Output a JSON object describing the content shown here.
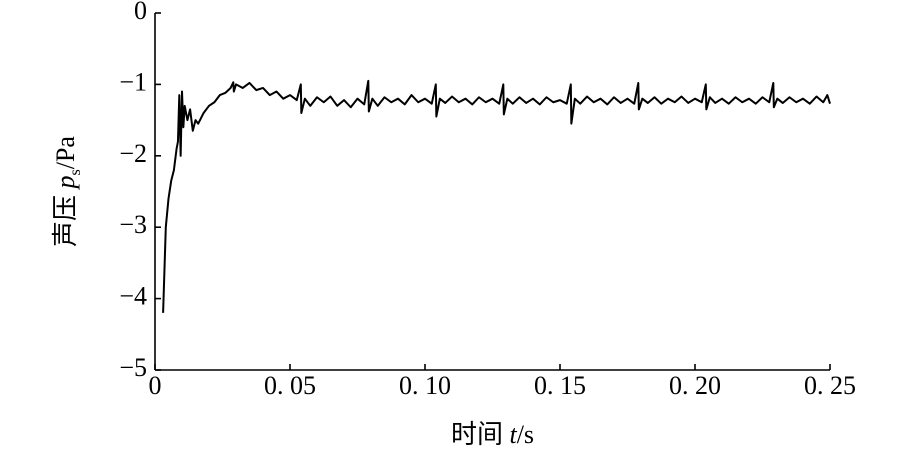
{
  "chart_data": {
    "type": "line",
    "xlabel": [
      "时间 ",
      "t",
      "/s"
    ],
    "ylabel": [
      "声压 ",
      "p",
      "s",
      "/Pa"
    ],
    "color": "#000000",
    "xlim": [
      0,
      0.25
    ],
    "xticks": [
      0,
      {
        "value": 0.05,
        "label": "0. 05"
      },
      {
        "value": 0.1,
        "label": "0. 10"
      },
      {
        "value": 0.15,
        "label": "0. 15"
      },
      {
        "value": 0.2,
        "label": "0. 20"
      },
      {
        "value": 0.25,
        "label": "0. 25"
      }
    ],
    "ylim": [
      -5,
      0
    ],
    "yticks": [
      {
        "value": -5,
        "label": "−5"
      },
      {
        "value": -4,
        "label": "−4"
      },
      {
        "value": -3,
        "label": "−3"
      },
      {
        "value": -2,
        "label": "−2"
      },
      {
        "value": -1,
        "label": "−1"
      },
      0
    ],
    "x": [
      0.003,
      0.0035,
      0.004,
      0.005,
      0.006,
      0.007,
      0.008,
      0.0085,
      0.009,
      0.0095,
      0.01,
      0.0105,
      0.011,
      0.012,
      0.013,
      0.014,
      0.015,
      0.016,
      0.018,
      0.02,
      0.022,
      0.024,
      0.026,
      0.028,
      0.029,
      0.0292,
      0.03,
      0.0325,
      0.035,
      0.0375,
      0.04,
      0.0425,
      0.045,
      0.0475,
      0.05,
      0.0525,
      0.054,
      0.0542,
      0.0555,
      0.0575,
      0.06,
      0.0625,
      0.065,
      0.0675,
      0.07,
      0.0725,
      0.075,
      0.0775,
      0.079,
      0.0792,
      0.0805,
      0.0825,
      0.085,
      0.0875,
      0.09,
      0.0925,
      0.095,
      0.0975,
      0.1,
      0.1025,
      0.104,
      0.1042,
      0.1055,
      0.1075,
      0.11,
      0.1125,
      0.115,
      0.1175,
      0.12,
      0.1225,
      0.125,
      0.1275,
      0.129,
      0.1292,
      0.1305,
      0.1325,
      0.135,
      0.1375,
      0.14,
      0.1425,
      0.145,
      0.1475,
      0.15,
      0.1525,
      0.154,
      0.1542,
      0.1555,
      0.1575,
      0.16,
      0.1625,
      0.165,
      0.1675,
      0.17,
      0.1725,
      0.175,
      0.1775,
      0.179,
      0.1792,
      0.1805,
      0.1825,
      0.185,
      0.1875,
      0.19,
      0.1925,
      0.195,
      0.1975,
      0.2,
      0.2025,
      0.204,
      0.2042,
      0.2055,
      0.2075,
      0.21,
      0.2125,
      0.215,
      0.2175,
      0.22,
      0.2225,
      0.225,
      0.2275,
      0.229,
      0.2292,
      0.2305,
      0.2325,
      0.235,
      0.2375,
      0.24,
      0.2425,
      0.245,
      0.2475,
      0.249,
      0.25
    ],
    "values": [
      -4.2,
      -3.6,
      -3.0,
      -2.6,
      -2.35,
      -2.2,
      -1.9,
      -1.8,
      -1.15,
      -2.0,
      -1.1,
      -1.6,
      -1.3,
      -1.5,
      -1.35,
      -1.65,
      -1.5,
      -1.55,
      -1.4,
      -1.3,
      -1.25,
      -1.15,
      -1.12,
      -1.05,
      -0.97,
      -1.1,
      -1.0,
      -1.05,
      -0.98,
      -1.08,
      -1.05,
      -1.15,
      -1.1,
      -1.2,
      -1.15,
      -1.22,
      -1.0,
      -1.4,
      -1.2,
      -1.3,
      -1.18,
      -1.25,
      -1.17,
      -1.3,
      -1.22,
      -1.32,
      -1.2,
      -1.28,
      -0.95,
      -1.38,
      -1.2,
      -1.3,
      -1.18,
      -1.25,
      -1.2,
      -1.28,
      -1.15,
      -1.25,
      -1.2,
      -1.27,
      -1.0,
      -1.45,
      -1.2,
      -1.26,
      -1.17,
      -1.25,
      -1.2,
      -1.28,
      -1.18,
      -1.25,
      -1.2,
      -1.27,
      -1.0,
      -1.42,
      -1.2,
      -1.27,
      -1.18,
      -1.26,
      -1.2,
      -1.28,
      -1.18,
      -1.25,
      -1.22,
      -1.27,
      -1.0,
      -1.55,
      -1.2,
      -1.27,
      -1.17,
      -1.25,
      -1.2,
      -1.28,
      -1.18,
      -1.26,
      -1.2,
      -1.27,
      -0.98,
      -1.35,
      -1.2,
      -1.26,
      -1.18,
      -1.27,
      -1.2,
      -1.25,
      -1.17,
      -1.26,
      -1.2,
      -1.25,
      -1.0,
      -1.35,
      -1.18,
      -1.26,
      -1.2,
      -1.27,
      -1.18,
      -1.25,
      -1.2,
      -1.27,
      -1.18,
      -1.25,
      -0.98,
      -1.32,
      -1.2,
      -1.26,
      -1.18,
      -1.25,
      -1.2,
      -1.27,
      -1.17,
      -1.25,
      -1.15,
      -1.27
    ]
  }
}
